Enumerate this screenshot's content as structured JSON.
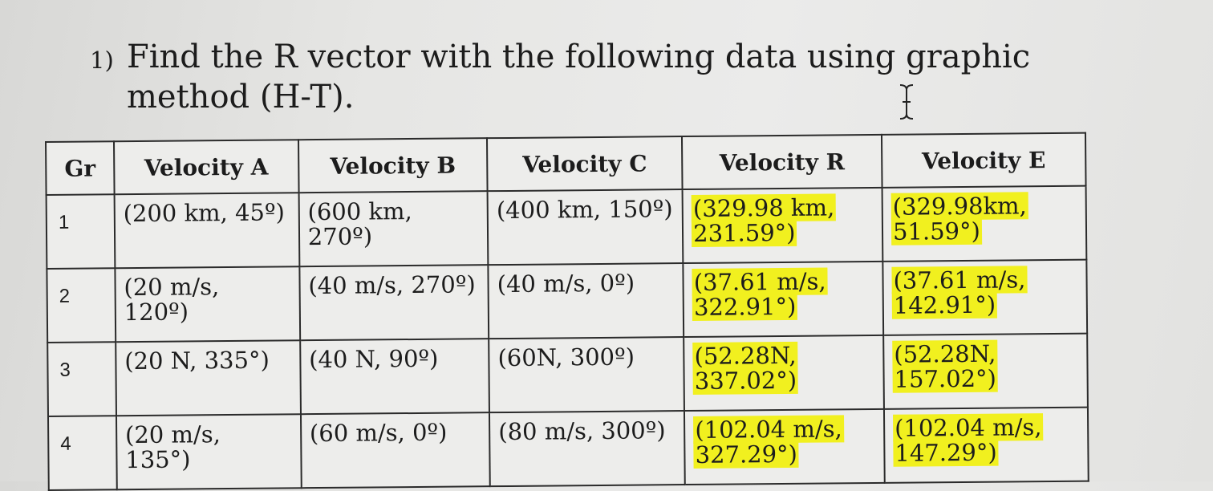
{
  "question": {
    "number": "1)",
    "text": "Find the R vector with the following data using graphic method (H-T)."
  },
  "table": {
    "headers": [
      "Gr",
      "Velocity A",
      "Velocity B",
      "Velocity C",
      "Velocity R",
      "Velocity E"
    ],
    "rows": [
      {
        "gr": "1",
        "a": "(200 km, 45º)",
        "b": "(600 km, 270º)",
        "c": "(400 km, 150º)",
        "r": "(329.98 km, 231.59°)",
        "e": "(329.98km, 51.59°)"
      },
      {
        "gr": "2",
        "a": "(20 m/s, 120º)",
        "b": "(40 m/s, 270º)",
        "c": "(40 m/s, 0º)",
        "r": "(37.61 m/s, 322.91°)",
        "e": "(37.61 m/s, 142.91°)"
      },
      {
        "gr": "3",
        "a": "(20 N, 335°)",
        "b": "(40 N, 90º)",
        "c": "(60N, 300º)",
        "r": "(52.28N, 337.02°)",
        "e": "(52.28N, 157.02°)"
      },
      {
        "gr": "4",
        "a": "(20 m/s, 135°)",
        "b": "(60 m/s, 0º)",
        "c": "(80 m/s, 300º)",
        "r": "(102.04 m/s, 327.29°)",
        "e": "(102.04 m/s, 147.29°)"
      }
    ],
    "highlight_color": "#f1f01f"
  },
  "cursor": {
    "icon": "text-cursor-icon"
  }
}
